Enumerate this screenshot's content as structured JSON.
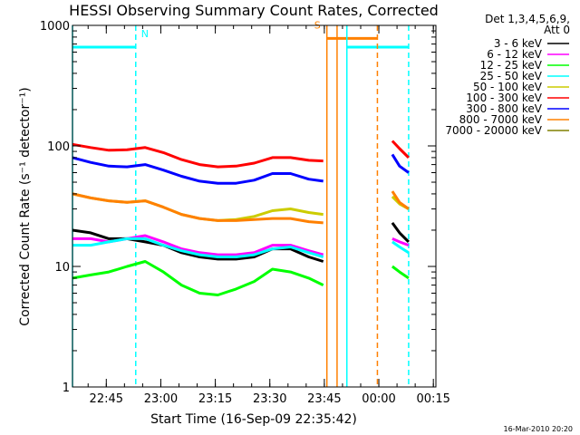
{
  "chart_data": {
    "type": "line",
    "title": "HESSI Observing Summary Count Rates, Corrected",
    "xlabel": "Start Time (16-Sep-09 22:35:42)",
    "ylabel": "Corrected Count Rate (s⁻¹ detector⁻¹)",
    "yscale": "log",
    "ylim": [
      1,
      1000
    ],
    "xlim_minutes": [
      0,
      100
    ],
    "x_tick_labels": [
      "22:45",
      "23:00",
      "23:15",
      "23:30",
      "23:45",
      "00:00",
      "00:15"
    ],
    "x_tick_minutes": [
      9.3,
      24.3,
      39.3,
      54.3,
      69.3,
      84.3,
      99.3
    ],
    "y_tick_labels": [
      "1",
      "10",
      "100",
      "1000"
    ],
    "y_tick_values": [
      1,
      10,
      100,
      1000
    ],
    "legend_header": [
      "Det 1,3,4,5,6,9,",
      "Att 0"
    ],
    "footer_date": "16-Mar-2010 20:20",
    "flags": [
      {
        "label": "N",
        "color": "#00ffff",
        "start_min": 0,
        "end_min": 17.4,
        "level": 660
      },
      {
        "label": "S",
        "color": "#ff8000",
        "start_min": 70,
        "end_min": 83.9,
        "level": 780
      },
      {
        "label": "",
        "color": "#00ffff",
        "start_min": 75.5,
        "end_min": 92.5,
        "level": 660
      }
    ],
    "vertical_lines": [
      {
        "min": 0,
        "color": "#00ffff",
        "style": "solid"
      },
      {
        "min": 17.4,
        "color": "#00ffff",
        "style": "dashed"
      },
      {
        "min": 70,
        "color": "#ff8000",
        "style": "solid"
      },
      {
        "min": 72.8,
        "color": "#ff8000",
        "style": "solid"
      },
      {
        "min": 75.5,
        "color": "#00ffff",
        "style": "solid"
      },
      {
        "min": 83.9,
        "color": "#ff8000",
        "style": "dashed"
      },
      {
        "min": 92.5,
        "color": "#00ffff",
        "style": "dashed"
      }
    ],
    "x_minutes": [
      0,
      5,
      10,
      15,
      20,
      25,
      30,
      35,
      40,
      45,
      50,
      55,
      60,
      65,
      69,
      88,
      90,
      92.5
    ],
    "series": [
      {
        "name": "3 - 6 keV",
        "color": "#000000",
        "values": [
          20,
          19,
          17,
          17,
          16,
          15,
          13,
          12,
          11.5,
          11.5,
          12,
          14,
          14,
          12,
          11,
          23,
          19,
          16
        ]
      },
      {
        "name": "6 - 12 keV",
        "color": "#ff00ff",
        "values": [
          17,
          17,
          16,
          17,
          18,
          16,
          14,
          13,
          12.5,
          12.5,
          13,
          15,
          15,
          13.5,
          12.5,
          17,
          16,
          15
        ]
      },
      {
        "name": "12 - 25 keV",
        "color": "#00ff00",
        "values": [
          8,
          8.5,
          9,
          10,
          11,
          9,
          7,
          6,
          5.8,
          6.5,
          7.5,
          9.5,
          9,
          8,
          7,
          10,
          9,
          8
        ]
      },
      {
        "name": "25 - 50 keV",
        "color": "#00ffff",
        "values": [
          15,
          15,
          16,
          17,
          17,
          15,
          13.5,
          12.5,
          12,
          12,
          12.5,
          14,
          14.5,
          13,
          12,
          16,
          14.5,
          13
        ]
      },
      {
        "name": "50 - 100 keV",
        "color": "#cccc00",
        "values": [
          40,
          37,
          35,
          34,
          35,
          31,
          27,
          25,
          24,
          24.5,
          26,
          29,
          30,
          28,
          27,
          38,
          33,
          30
        ]
      },
      {
        "name": "100 - 300 keV",
        "color": "#ff0000",
        "values": [
          103,
          97,
          92,
          93,
          97,
          88,
          77,
          70,
          67,
          68,
          72,
          80,
          80,
          76,
          75,
          110,
          95,
          80
        ]
      },
      {
        "name": "300 - 800 keV",
        "color": "#0000ff",
        "values": [
          80,
          73,
          68,
          67,
          70,
          63,
          56,
          51,
          49,
          49,
          52,
          59,
          59,
          53,
          51,
          85,
          68,
          60
        ]
      },
      {
        "name": "800 - 7000 keV",
        "color": "#ff8000",
        "values": [
          40,
          37,
          35,
          34,
          35,
          31,
          27,
          25,
          24,
          24,
          24.5,
          25,
          25,
          23.5,
          23,
          42,
          34,
          30
        ]
      },
      {
        "name": "7000 - 20000 keV",
        "color": "#808000",
        "values": []
      }
    ]
  }
}
